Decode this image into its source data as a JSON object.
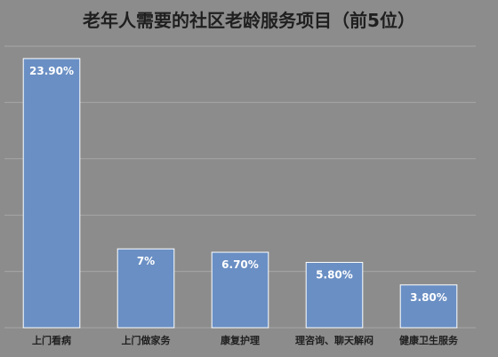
{
  "chart_data": {
    "type": "bar",
    "title": "老年人需要的社区老龄服务项目（前5位）",
    "categories": [
      "上门看病",
      "上门做家务",
      "康复护理",
      "理咨询、聊天解闷",
      "健康卫生服务"
    ],
    "values": [
      23.9,
      7.0,
      6.7,
      5.8,
      3.8
    ],
    "data_labels": [
      "23.90%",
      "7%",
      "6.70%",
      "5.80%",
      "3.80%"
    ],
    "xlabel": "",
    "ylabel": "",
    "ylim": [
      0,
      25
    ],
    "y_ticks": [
      0,
      5,
      10,
      15,
      20,
      25
    ],
    "grid": true,
    "y_tick_labels_visible": false,
    "legend": "none",
    "colors": {
      "bar": "#6a8fc4",
      "bar_outline": "#ffffff",
      "background": "#8c8c8c",
      "gridline": "#a6a6a6",
      "title": "#1f1f1f",
      "data_label": "#ffffff"
    }
  }
}
